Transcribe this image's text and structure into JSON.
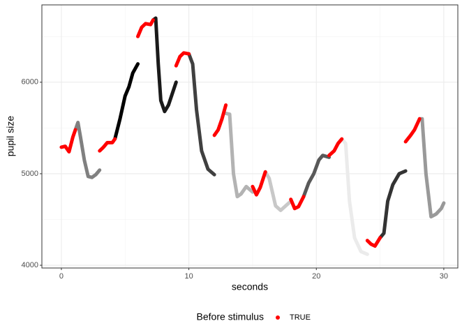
{
  "chart_data": {
    "type": "line",
    "x_label": "seconds",
    "y_label": "pupil size",
    "legend_title": "Before stimulus",
    "legend_position": "bottom",
    "xlim": [
      -1.53,
      31.1
    ],
    "ylim": [
      3970,
      6845
    ],
    "xticks": [
      0,
      10,
      20,
      30
    ],
    "yticks": [
      4000,
      5000,
      6000
    ],
    "x_minor_ticks": [
      5,
      15,
      25
    ],
    "y_minor_ticks": [
      4500,
      5500,
      6500
    ],
    "grid": true,
    "series": [
      {
        "name": "TRUE",
        "color": "#ff0000",
        "x": [
          0,
          0.3,
          0.6,
          0.9,
          1.1,
          null,
          3,
          3.3,
          3.6,
          4,
          4.2,
          null,
          6,
          6.3,
          6.6,
          7,
          7.2,
          null,
          9,
          9.3,
          9.6,
          10,
          null,
          12,
          12.3,
          12.6,
          12.9,
          null,
          15,
          15.3,
          15.6,
          16,
          null,
          18,
          18.3,
          18.6,
          19,
          null,
          21,
          21.4,
          21.7,
          22,
          null,
          24,
          24.3,
          24.6,
          25,
          null,
          27,
          27.4,
          27.7,
          28.1
        ],
        "values": [
          5290,
          5300,
          5240,
          5400,
          5480,
          null,
          5250,
          5290,
          5340,
          5340,
          5380,
          null,
          6500,
          6600,
          6640,
          6630,
          6680,
          null,
          6180,
          6280,
          6320,
          6310,
          null,
          5420,
          5480,
          5600,
          5750,
          null,
          4860,
          4770,
          4850,
          5020,
          null,
          4720,
          4620,
          4640,
          4750,
          null,
          5200,
          5250,
          5330,
          5380,
          null,
          4270,
          4230,
          4210,
          4300,
          null,
          5350,
          5420,
          5480,
          5600
        ]
      },
      {
        "color": "#808080",
        "x": [
          1.1,
          1.3,
          1.5,
          1.8,
          2.1,
          2.4,
          2.7,
          3.0
        ],
        "values": [
          5480,
          5560,
          5400,
          5150,
          4970,
          4960,
          4990,
          5040
        ]
      },
      {
        "color": "#000000",
        "x": [
          4.2,
          4.6,
          5,
          5.3,
          5.6,
          6
        ],
        "values": [
          5380,
          5600,
          5850,
          5950,
          6100,
          6200
        ]
      },
      {
        "color": "#1a1a1a",
        "x": [
          7.2,
          7.4,
          7.6,
          7.8,
          8.1,
          8.4,
          9
        ],
        "values": [
          6680,
          6700,
          6200,
          5800,
          5680,
          5750,
          6000
        ]
      },
      {
        "color": "#404040",
        "x": [
          10,
          10.3,
          10.6,
          11,
          11.5,
          12
        ],
        "values": [
          6310,
          6200,
          5700,
          5250,
          5050,
          4990
        ]
      },
      {
        "color": "#b3b3b3",
        "x": [
          12.9,
          13.2,
          13.5,
          13.8,
          14.1,
          14.5,
          15
        ],
        "values": [
          5660,
          5650,
          5000,
          4750,
          4780,
          4860,
          4800
        ]
      },
      {
        "color": "#c8c8c8",
        "x": [
          16,
          16.3,
          16.8,
          17.2,
          17.6,
          18
        ],
        "values": [
          5020,
          4950,
          4650,
          4600,
          4650,
          4700
        ]
      },
      {
        "color": "#595959",
        "x": [
          19,
          19.4,
          19.8,
          20.2,
          20.5,
          21
        ],
        "values": [
          4750,
          4900,
          5000,
          5150,
          5200,
          5180
        ]
      },
      {
        "color": "#ebebeb",
        "x": [
          22,
          22.3,
          22.6,
          23,
          23.5,
          24
        ],
        "values": [
          5380,
          5330,
          4700,
          4300,
          4150,
          4120
        ]
      },
      {
        "color": "#333333",
        "x": [
          25,
          25.3,
          25.6,
          26,
          26.5,
          27
        ],
        "values": [
          4300,
          4350,
          4700,
          4880,
          5000,
          5030
        ]
      },
      {
        "color": "#999999",
        "x": [
          28.1,
          28.3,
          28.6,
          29,
          29.4,
          29.8,
          30
        ],
        "values": [
          5600,
          5600,
          5000,
          4530,
          4560,
          4620,
          4680
        ]
      }
    ]
  }
}
